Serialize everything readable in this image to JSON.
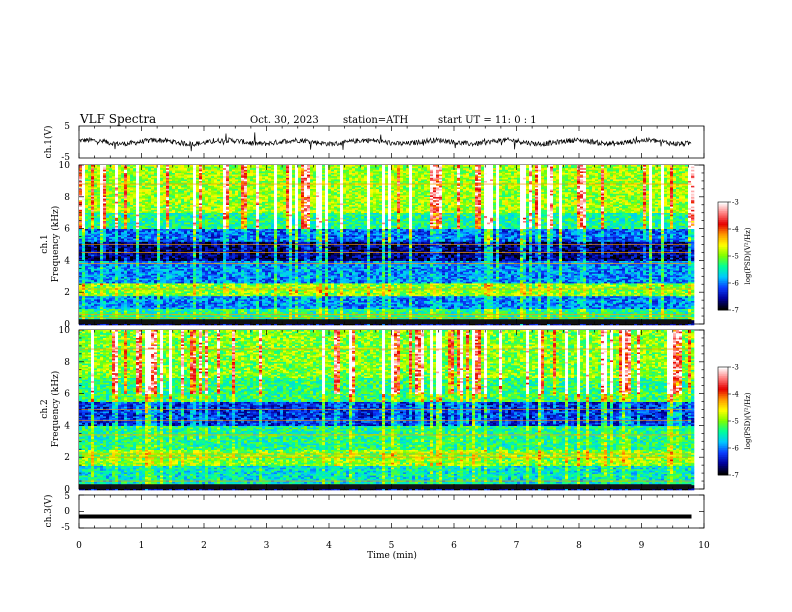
{
  "header": {
    "title": "VLF  Spectra",
    "date": "Oct. 30, 2023",
    "station": "station=ATH",
    "start": "start  UT  =   11: 0   : 1"
  },
  "colors": {
    "waveform": "#000000",
    "colormap": [
      "#000000",
      "#00009a",
      "#0a3cff",
      "#00c8ff",
      "#00ff9a",
      "#7dff00",
      "#ffff00",
      "#ff9a00",
      "#e60000",
      "#ff7d7d",
      "#ffffff"
    ]
  },
  "chart_data": [
    {
      "type": "line",
      "panel": "ch1-waveform",
      "ylabel": "ch.1(V)",
      "ylim": [
        -5,
        5
      ],
      "y_ticks": [
        "5",
        "-5"
      ],
      "x_range_min": [
        0,
        10
      ],
      "note_series": "noisy signal around 0 V, amplitude about ±1 V, from 0 to 9.8 min"
    },
    {
      "type": "heatmap",
      "panel": "ch1-spectrogram",
      "ylabel": "ch.1\nFrequency  (kHz)",
      "ylim": [
        0,
        10
      ],
      "y_ticks": [
        "0",
        "2",
        "4",
        "6",
        "8",
        "10"
      ],
      "x_range_min": [
        0,
        9.8
      ],
      "colorbar": {
        "label": "log(PSD)(V²/Hz)",
        "range": [
          -7,
          -3
        ],
        "ticks": [
          "-3",
          "-4",
          "-5",
          "-6",
          "-7"
        ]
      },
      "bands": [
        {
          "f": [
            0,
            0.3
          ],
          "level": -6.8
        },
        {
          "f": [
            0.3,
            1.0
          ],
          "level": -5.4
        },
        {
          "f": [
            1.0,
            1.8
          ],
          "level": -6.0
        },
        {
          "f": [
            1.8,
            2.6
          ],
          "level": -5.0
        },
        {
          "f": [
            2.6,
            4.0
          ],
          "level": -6.0
        },
        {
          "f": [
            4.0,
            5.2
          ],
          "level": -6.7
        },
        {
          "f": [
            5.2,
            6.0
          ],
          "level": -6.1
        },
        {
          "f": [
            6.0,
            7.0
          ],
          "level": -5.4
        },
        {
          "f": [
            7.0,
            10.0
          ],
          "level": -4.9
        }
      ],
      "lines_khz": [
        0.4,
        0.6,
        2.2,
        3.8,
        4.5,
        5.0,
        8.8
      ]
    },
    {
      "type": "heatmap",
      "panel": "ch2-spectrogram",
      "ylabel": "ch.2\nFrequency  (kHz)",
      "ylim": [
        0,
        10
      ],
      "y_ticks": [
        "0",
        "2",
        "4",
        "6",
        "8",
        "10"
      ],
      "x_range_min": [
        0,
        9.8
      ],
      "colorbar": {
        "label": "log(PSD)(V²/Hz)",
        "range": [
          -7,
          -3
        ],
        "ticks": [
          "-3",
          "-4",
          "-5",
          "-6",
          "-7"
        ]
      },
      "bands": [
        {
          "f": [
            0,
            0.3
          ],
          "level": -6.8
        },
        {
          "f": [
            0.3,
            1.5
          ],
          "level": -5.6
        },
        {
          "f": [
            1.5,
            2.5
          ],
          "level": -5.0
        },
        {
          "f": [
            2.5,
            4.0
          ],
          "level": -5.4
        },
        {
          "f": [
            4.0,
            5.5
          ],
          "level": -6.3
        },
        {
          "f": [
            5.5,
            7.0
          ],
          "level": -5.3
        },
        {
          "f": [
            7.0,
            10.0
          ],
          "level": -5.0
        }
      ],
      "lines_khz": [
        0.5,
        2.0,
        2.2,
        3.4,
        4.3,
        5.0,
        8.8
      ]
    },
    {
      "type": "line",
      "panel": "ch3-waveform",
      "ylabel": "ch.3(V)",
      "ylim": [
        -5,
        5
      ],
      "y_ticks": [
        "5",
        "0",
        "-5"
      ],
      "series": [
        {
          "x": [
            0,
            9.8
          ],
          "y": [
            -1.5,
            -1.5
          ]
        }
      ]
    }
  ],
  "x_axis": {
    "label": "Time  (min)",
    "range": [
      0,
      10
    ],
    "ticks": [
      "0",
      "1",
      "2",
      "3",
      "4",
      "5",
      "6",
      "7",
      "8",
      "9",
      "10"
    ]
  }
}
